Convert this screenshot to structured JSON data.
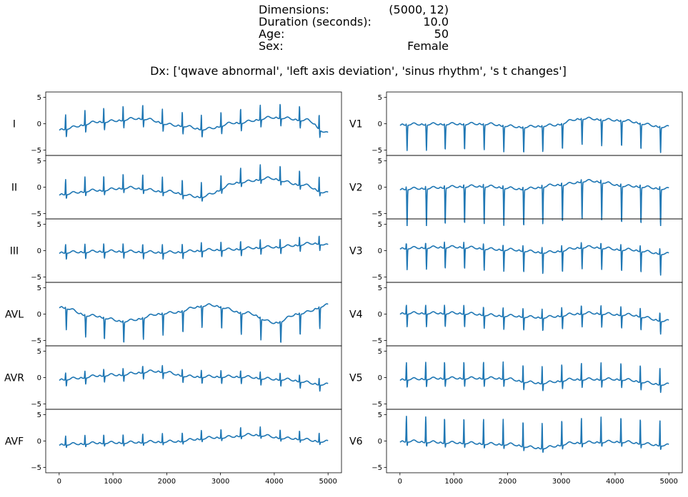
{
  "header": {
    "rows": [
      {
        "label": "Dimensions:",
        "value": "(5000, 12)"
      },
      {
        "label": "Duration (seconds):",
        "value": "10.0"
      },
      {
        "label": "Age:",
        "value": "50"
      },
      {
        "label": "Sex:",
        "value": "Female"
      }
    ],
    "dx": "Dx: ['qwave abnormal', 'left axis deviation', 'sinus rhythm', 's t changes']"
  },
  "chart_data": {
    "type": "line",
    "x": {
      "min": 0,
      "max": 5000,
      "xlim": [
        -250,
        5250
      ],
      "ticks": [
        0,
        1000,
        2000,
        3000,
        4000,
        5000
      ],
      "tick_labels": [
        "0",
        "1000",
        "2000",
        "3000",
        "4000",
        "5000"
      ]
    },
    "ylim": [
      -6,
      6
    ],
    "y_ticks": [
      -5,
      0,
      5
    ],
    "y_tick_labels": [
      "−5",
      "0",
      "5"
    ],
    "line_color": "#1f77b4",
    "beats": [
      120,
      480,
      830,
      1190,
      1555,
      1920,
      2290,
      2645,
      3010,
      3375,
      3740,
      4110,
      4470,
      4835
    ],
    "leads": [
      {
        "name": "I",
        "column": 0,
        "r": 3.0,
        "s": -1.5,
        "baseline": [
          [
            0,
            -1.2
          ],
          [
            800,
            0.2
          ],
          [
            1500,
            0.8
          ],
          [
            2200,
            -0.5
          ],
          [
            2700,
            -1.2
          ],
          [
            3300,
            0
          ],
          [
            4000,
            1.0
          ],
          [
            4600,
            0.5
          ],
          [
            5000,
            -2.0
          ]
        ]
      },
      {
        "name": "II",
        "column": 0,
        "r": 3.0,
        "s": -0.8,
        "baseline": [
          [
            0,
            -1.5
          ],
          [
            700,
            -0.8
          ],
          [
            1300,
            -0.3
          ],
          [
            2000,
            -1.0
          ],
          [
            2600,
            -2.0
          ],
          [
            3400,
            0.8
          ],
          [
            3900,
            1.5
          ],
          [
            4500,
            0.3
          ],
          [
            5000,
            -1.3
          ]
        ]
      },
      {
        "name": "III",
        "column": 0,
        "r": 1.8,
        "s": -1.2,
        "baseline": [
          [
            0,
            -0.5
          ],
          [
            1000,
            -0.3
          ],
          [
            2000,
            -0.5
          ],
          [
            3000,
            0
          ],
          [
            4000,
            0.5
          ],
          [
            4800,
            1.2
          ],
          [
            5000,
            0.8
          ]
        ]
      },
      {
        "name": "AVL",
        "column": 0,
        "r": 0.5,
        "s": -4.0,
        "baseline": [
          [
            0,
            1.2
          ],
          [
            600,
            -0.5
          ],
          [
            1200,
            -1.5
          ],
          [
            2000,
            0
          ],
          [
            2800,
            1.5
          ],
          [
            3500,
            0
          ],
          [
            4000,
            -1.8
          ],
          [
            4500,
            0
          ],
          [
            5000,
            1.5
          ]
        ]
      },
      {
        "name": "AVR",
        "column": 0,
        "r": 1.5,
        "s": -1.2,
        "baseline": [
          [
            0,
            -0.5
          ],
          [
            1000,
            0.3
          ],
          [
            1800,
            1.0
          ],
          [
            2500,
            0
          ],
          [
            3300,
            0
          ],
          [
            4100,
            -0.5
          ],
          [
            5000,
            -1.5
          ]
        ]
      },
      {
        "name": "AVF",
        "column": 0,
        "r": 1.8,
        "s": -0.5,
        "baseline": [
          [
            0,
            -0.8
          ],
          [
            1000,
            -0.5
          ],
          [
            2000,
            -0.3
          ],
          [
            3000,
            0.5
          ],
          [
            3600,
            1.0
          ],
          [
            4300,
            0.3
          ],
          [
            5000,
            -0.3
          ]
        ]
      },
      {
        "name": "V1",
        "column": 1,
        "r": 0.5,
        "s": -4.8,
        "baseline": [
          [
            0,
            -0.3
          ],
          [
            1500,
            -0.2
          ],
          [
            2300,
            -0.8
          ],
          [
            2800,
            -0.5
          ],
          [
            3400,
            0.8
          ],
          [
            4000,
            0.5
          ],
          [
            5000,
            -0.8
          ]
        ]
      },
      {
        "name": "V2",
        "column": 1,
        "r": 1.0,
        "s": -7.0,
        "baseline": [
          [
            0,
            -0.5
          ],
          [
            1500,
            0
          ],
          [
            2300,
            -0.5
          ],
          [
            3000,
            0.3
          ],
          [
            3500,
            1.0
          ],
          [
            4300,
            0
          ],
          [
            5000,
            -0.5
          ]
        ]
      },
      {
        "name": "V3",
        "column": 1,
        "r": 1.5,
        "s": -4.0,
        "baseline": [
          [
            0,
            0.3
          ],
          [
            1000,
            0.5
          ],
          [
            2000,
            0
          ],
          [
            2700,
            -0.5
          ],
          [
            3500,
            0.5
          ],
          [
            4200,
            0
          ],
          [
            5000,
            -0.8
          ]
        ]
      },
      {
        "name": "V4",
        "column": 1,
        "r": 2.0,
        "s": -2.5,
        "baseline": [
          [
            0,
            0
          ],
          [
            1000,
            0
          ],
          [
            2000,
            -0.5
          ],
          [
            2600,
            -0.8
          ],
          [
            3500,
            0
          ],
          [
            4200,
            -0.3
          ],
          [
            5000,
            -1.5
          ]
        ]
      },
      {
        "name": "V5",
        "column": 1,
        "r": 3.5,
        "s": -1.5,
        "baseline": [
          [
            0,
            -0.5
          ],
          [
            1000,
            -0.3
          ],
          [
            1800,
            -0.3
          ],
          [
            2600,
            -1.2
          ],
          [
            3300,
            -0.5
          ],
          [
            4000,
            -0.5
          ],
          [
            5000,
            -1.5
          ]
        ]
      },
      {
        "name": "V6",
        "column": 1,
        "r": 5.0,
        "s": -0.8,
        "baseline": [
          [
            0,
            -0.2
          ],
          [
            1000,
            -0.5
          ],
          [
            2000,
            -0.8
          ],
          [
            2600,
            -1.5
          ],
          [
            3300,
            -0.5
          ],
          [
            4000,
            -0.3
          ],
          [
            5000,
            -1.0
          ]
        ]
      }
    ]
  }
}
